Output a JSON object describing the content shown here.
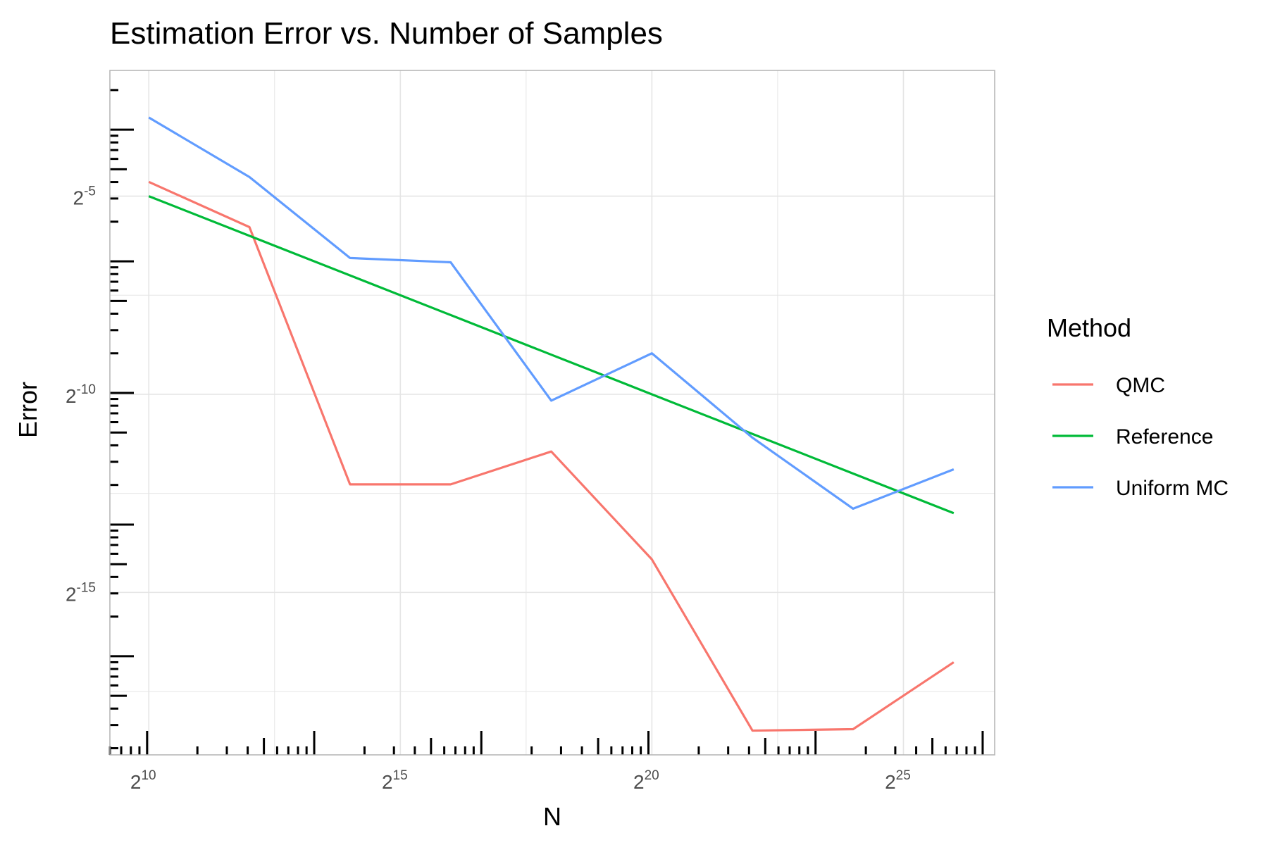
{
  "chart_data": {
    "type": "line",
    "title": "Estimation Error vs. Number of Samples",
    "xlabel": "N",
    "ylabel": "Error",
    "x_scale": "log2",
    "y_scale": "log2",
    "x": [
      1024,
      4096,
      16384,
      65536,
      262144,
      1048576,
      4194304,
      16777216,
      67108864
    ],
    "series": [
      {
        "name": "QMC",
        "color": "#F8766D",
        "values": [
          0.0401,
          0.0182,
          0.000202,
          0.000202,
          0.000359,
          5.44e-05,
          2.72e-06,
          2.79e-06,
          9e-06
        ]
      },
      {
        "name": "Reference",
        "color": "#00BA38",
        "values": [
          0.03125,
          0.015625,
          0.0078125,
          0.00390625,
          0.001953125,
          0.0009765625,
          0.00048828125,
          0.000244140625,
          0.0001220703125
        ]
      },
      {
        "name": "Uniform MC",
        "color": "#619CFF",
        "values": [
          0.1237,
          0.0437,
          0.0106,
          0.00983,
          0.000874,
          0.002,
          0.000457,
          0.000132,
          0.000263
        ]
      }
    ],
    "xlim": [
      599,
      118000000
    ],
    "ylim": [
      1.78e-06,
      0.282
    ],
    "x_ticks": [
      {
        "value": 1024,
        "base": "2",
        "exp": "10"
      },
      {
        "value": 32768,
        "base": "2",
        "exp": "15"
      },
      {
        "value": 1048576,
        "base": "2",
        "exp": "20"
      },
      {
        "value": 33554432,
        "base": "2",
        "exp": "25"
      }
    ],
    "y_ticks": [
      {
        "value": 0.03125,
        "base": "2",
        "exp": "-5"
      },
      {
        "value": 0.0009765625,
        "base": "2",
        "exp": "-10"
      },
      {
        "value": 3.0517578125e-05,
        "base": "2",
        "exp": "-15"
      }
    ],
    "grid": true,
    "log_rug_ticks": true,
    "legend": {
      "title": "Method",
      "position": "right",
      "items": [
        "QMC",
        "Reference",
        "Uniform MC"
      ]
    },
    "colors": {
      "panel_border": "#b3b3b3",
      "grid": "#e5e5e5",
      "rug": "#000000"
    }
  }
}
